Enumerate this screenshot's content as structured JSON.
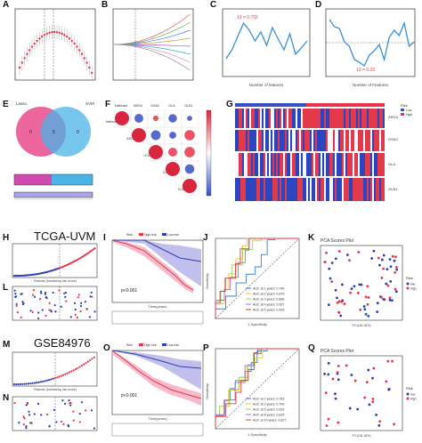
{
  "labels": [
    "A",
    "B",
    "C",
    "D",
    "E",
    "F",
    "G",
    "H",
    "I",
    "J",
    "K",
    "L",
    "M",
    "N",
    "O",
    "P",
    "Q"
  ],
  "datasets": {
    "tcga": "TCGA-UVM",
    "geo": "GSE84976"
  },
  "panel_c": {
    "ann": "13 = 0.792",
    "xlabel": "Number of features",
    "color": "#3b8fd6"
  },
  "panel_d": {
    "ann": "13 = 0.23",
    "xlabel": "Number of Features",
    "color": "#3b8fd6"
  },
  "panel_e": {
    "left": "Lasso",
    "right": "SVM",
    "a": "0",
    "b": "5",
    "c": "0",
    "left_color": "#e64b8c",
    "right_color": "#4ab3e8"
  },
  "panel_f": {
    "genes": [
      "Hallmark",
      "ARG4",
      "GSA2",
      "GLA",
      "GLB1"
    ]
  },
  "panel_g": {
    "rows": [
      "ARG4",
      "GSA2",
      "GLA",
      "GLB1"
    ],
    "legend_title": "Risk",
    "legend_items": [
      "Low",
      "High"
    ]
  },
  "panel_i": {
    "p": "p<0.001",
    "xlabel": "Time(years)",
    "legend": [
      "Risk",
      "High risk",
      "Low risk"
    ]
  },
  "panel_o": {
    "p": "p<0.001",
    "xlabel": "Time(years)",
    "legend": [
      "Risk",
      "High risk",
      "Low risk"
    ]
  },
  "panel_j": {
    "xlabel": "1-Specificity",
    "ylabel": "Sensitivity",
    "auc": [
      "AUC at 1 years: 0.749",
      "AUC at 2 years: 0.875",
      "AUC at 3 years: 0.896",
      "AUC at 4 years: 0.927",
      "AUC at 5 years: 0.925"
    ],
    "colors": [
      "#3a7bd5",
      "#e8c62a",
      "#9bd34c",
      "#b26ad6",
      "#e03a3a"
    ]
  },
  "panel_p": {
    "xlabel": "1-Specificity",
    "ylabel": "Sensitivity",
    "auc": [
      "AUC at 2 years: 0.763",
      "AUC at 3 years: 0.799",
      "AUC at 5 years: 0.923",
      "AUC at 8 years: 0.825",
      "AUC at 10 years: 0.827"
    ],
    "colors": [
      "#3a7bd5",
      "#e8c62a",
      "#9bd34c",
      "#b26ad6",
      "#e03a3a"
    ]
  },
  "panel_k": {
    "title": "PCA Scores Plot",
    "xlabel": "PC1(46.18%)",
    "ylabel": "PC2(17.28%)",
    "legend": [
      "Risk",
      "low",
      "high"
    ]
  },
  "panel_q": {
    "title": "PCA Scores Plot",
    "xlabel": "PC1(36.18%)",
    "ylabel": "PC2(17.21%)",
    "legend": [
      "Risk",
      "low",
      "high"
    ]
  },
  "panel_h": {
    "legend": [
      "High Risk",
      "Low Risk"
    ],
    "xlabel": "Patients (increasing risk score)"
  },
  "panel_m": {
    "xlabel": "Patients (increasing risk score)"
  },
  "colors": {
    "red": "#e8344a",
    "blue": "#2a3fb0",
    "pink": "#f4a3b8",
    "lavender": "#a9a4e6"
  }
}
